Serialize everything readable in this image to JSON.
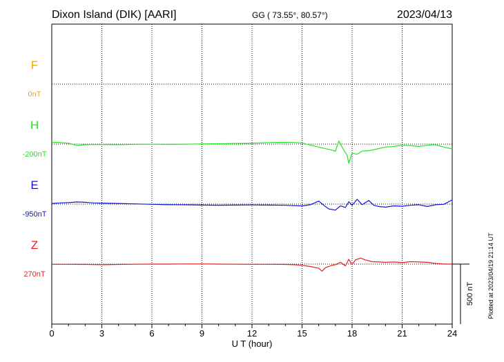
{
  "header": {
    "station": "Dixon Island (DIK)  [AARI]",
    "coords": "GG ( 73.55°,  80.57°)",
    "date": "2023/04/13"
  },
  "footer": {
    "plotted_note": "Plotted at 2023/04/19 21:14 UT",
    "scale_label": "500 nT"
  },
  "chart_data": {
    "type": "line",
    "title": "Dixon Island (DIK)  [AARI]",
    "xlabel": "U T (hour)",
    "ylabel": "",
    "xlim": [
      0,
      24
    ],
    "x_ticks": [
      0,
      3,
      6,
      9,
      12,
      15,
      18,
      21,
      24
    ],
    "x_tick_labels": [
      "0",
      "3",
      "6",
      "9",
      "12",
      "15",
      "18",
      "21",
      "24"
    ],
    "grid": true,
    "ylim_nT_offset": [
      -450,
      900
    ],
    "scale_bar_nT": 500,
    "series": [
      {
        "name": "F",
        "offset_label": "0nT",
        "color": "#f5a800",
        "x": [],
        "y": []
      },
      {
        "name": "H",
        "offset_label": "-200nT",
        "color": "#22e622",
        "x": [
          0,
          0.5,
          1,
          1.5,
          2,
          2.5,
          3,
          4,
          5,
          6,
          7,
          8,
          9,
          10,
          11,
          12,
          13,
          14,
          14.5,
          15,
          15.5,
          16,
          16.4,
          16.8,
          17,
          17.2,
          17.5,
          17.7,
          17.8,
          18,
          18.3,
          18.6,
          19,
          19.5,
          20,
          20.5,
          21,
          21.5,
          22,
          22.5,
          23,
          23.5,
          24
        ],
        "y": [
          15,
          12,
          8,
          -12,
          -5,
          -3,
          -4,
          -5,
          -2,
          -1,
          -2,
          -1,
          2,
          3,
          5,
          8,
          12,
          15,
          13,
          10,
          -8,
          -25,
          -38,
          -50,
          -60,
          25,
          -50,
          -90,
          -160,
          -75,
          -85,
          -58,
          -55,
          -40,
          -25,
          -20,
          -10,
          -12,
          -20,
          -10,
          -5,
          -25,
          -40
        ]
      },
      {
        "name": "E",
        "offset_label": "-950nT",
        "color": "#1010dc",
        "x": [
          0,
          0.5,
          1,
          1.5,
          2,
          2.5,
          3,
          4,
          5,
          6,
          7,
          8,
          9,
          10,
          11,
          12,
          13,
          14,
          15,
          15.5,
          16,
          16.3,
          16.6,
          17,
          17.3,
          17.6,
          17.8,
          18,
          18.3,
          18.6,
          19,
          19.3,
          19.6,
          20,
          20.5,
          21,
          21.5,
          22,
          22.5,
          23,
          23.5,
          24
        ],
        "y": [
          5,
          10,
          12,
          18,
          15,
          10,
          8,
          5,
          2,
          -2,
          -5,
          -6,
          -8,
          -9,
          -8,
          -7,
          -8,
          -10,
          -15,
          -5,
          25,
          -10,
          -40,
          -50,
          -15,
          -28,
          20,
          -10,
          40,
          -5,
          30,
          -10,
          -20,
          -25,
          -15,
          -18,
          -10,
          -5,
          -20,
          -5,
          -2,
          35
        ]
      },
      {
        "name": "Z",
        "offset_label": "270nT",
        "color": "#e81c1c",
        "x": [
          0,
          1,
          2,
          3,
          4,
          5,
          6,
          7,
          8,
          9,
          10,
          11,
          12,
          13,
          14,
          14.5,
          15,
          15.5,
          16,
          16.2,
          16.4,
          16.6,
          16.8,
          17,
          17.3,
          17.6,
          17.8,
          18,
          18.2,
          18.5,
          18.8,
          19.2,
          19.6,
          20,
          20.5,
          21,
          21.5,
          22,
          22.5,
          23,
          23.5,
          24
        ],
        "y": [
          -2,
          -2,
          -3,
          -5,
          -3,
          -1,
          0,
          0,
          1,
          1,
          0,
          -1,
          -2,
          -2,
          -3,
          -5,
          -10,
          -20,
          -35,
          -60,
          -30,
          -20,
          -10,
          -5,
          15,
          -15,
          40,
          -5,
          35,
          50,
          35,
          20,
          18,
          15,
          18,
          12,
          20,
          18,
          15,
          5,
          0,
          0
        ]
      }
    ]
  }
}
